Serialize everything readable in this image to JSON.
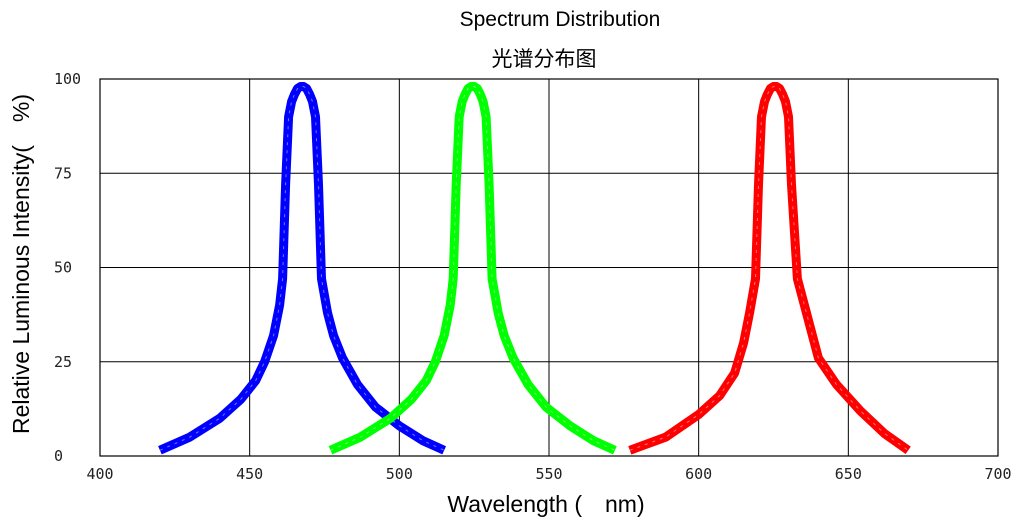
{
  "chart_data": {
    "type": "line",
    "title": "Spectrum Distribution",
    "subtitle": "光谱分布图",
    "xlabel": "Wavelength (　nm)",
    "ylabel": "Relative Luminous Intensity(　%)",
    "xlim": [
      400,
      700
    ],
    "ylim": [
      0,
      100
    ],
    "xticks": [
      "400",
      "450",
      "500",
      "550",
      "600",
      "650",
      "700"
    ],
    "yticks": [
      "0",
      "25",
      "50",
      "75",
      "100"
    ],
    "grid": true,
    "series": [
      {
        "color": "#0000ff",
        "x": [
          420,
          430,
          440,
          447,
          452,
          455,
          458,
          460,
          461,
          462,
          463,
          464,
          465,
          466,
          467,
          468,
          469,
          470,
          471,
          472,
          473,
          474,
          476,
          478,
          481,
          486,
          492,
          500,
          508,
          515
        ],
        "y": [
          1.5,
          5,
          10,
          15,
          20,
          25,
          32,
          40,
          47,
          72,
          90,
          94,
          96,
          97.5,
          98,
          98,
          97.5,
          96,
          94,
          90,
          72,
          47,
          38,
          32,
          26,
          19,
          13,
          8,
          4,
          1.5
        ]
      },
      {
        "color": "#00ff00",
        "x": [
          477,
          487,
          497,
          504,
          509,
          512,
          515,
          517,
          518,
          519,
          520,
          521,
          522,
          523,
          524,
          525,
          526,
          527,
          528,
          529,
          530,
          531,
          533,
          535,
          538,
          543,
          549,
          557,
          565,
          572
        ],
        "y": [
          1.5,
          5,
          10,
          15,
          20,
          25,
          32,
          40,
          47,
          72,
          90,
          94,
          96,
          97.5,
          98,
          98,
          97.5,
          96,
          94,
          90,
          72,
          47,
          38,
          32,
          26,
          19,
          13,
          8,
          4,
          1.5
        ]
      },
      {
        "color": "#ff0000",
        "x": [
          577,
          589,
          600,
          607,
          612,
          615,
          617,
          619,
          620,
          621,
          622,
          623,
          624,
          625,
          626,
          627,
          628,
          629,
          630,
          631,
          633,
          636,
          640,
          646,
          654,
          662,
          670
        ],
        "y": [
          1.5,
          5,
          11,
          16,
          22,
          30,
          38,
          47,
          72,
          90,
          94,
          96,
          97.5,
          98,
          98,
          97.5,
          96,
          94,
          90,
          72,
          47,
          38,
          26,
          19,
          12,
          6,
          1.5
        ]
      }
    ]
  }
}
